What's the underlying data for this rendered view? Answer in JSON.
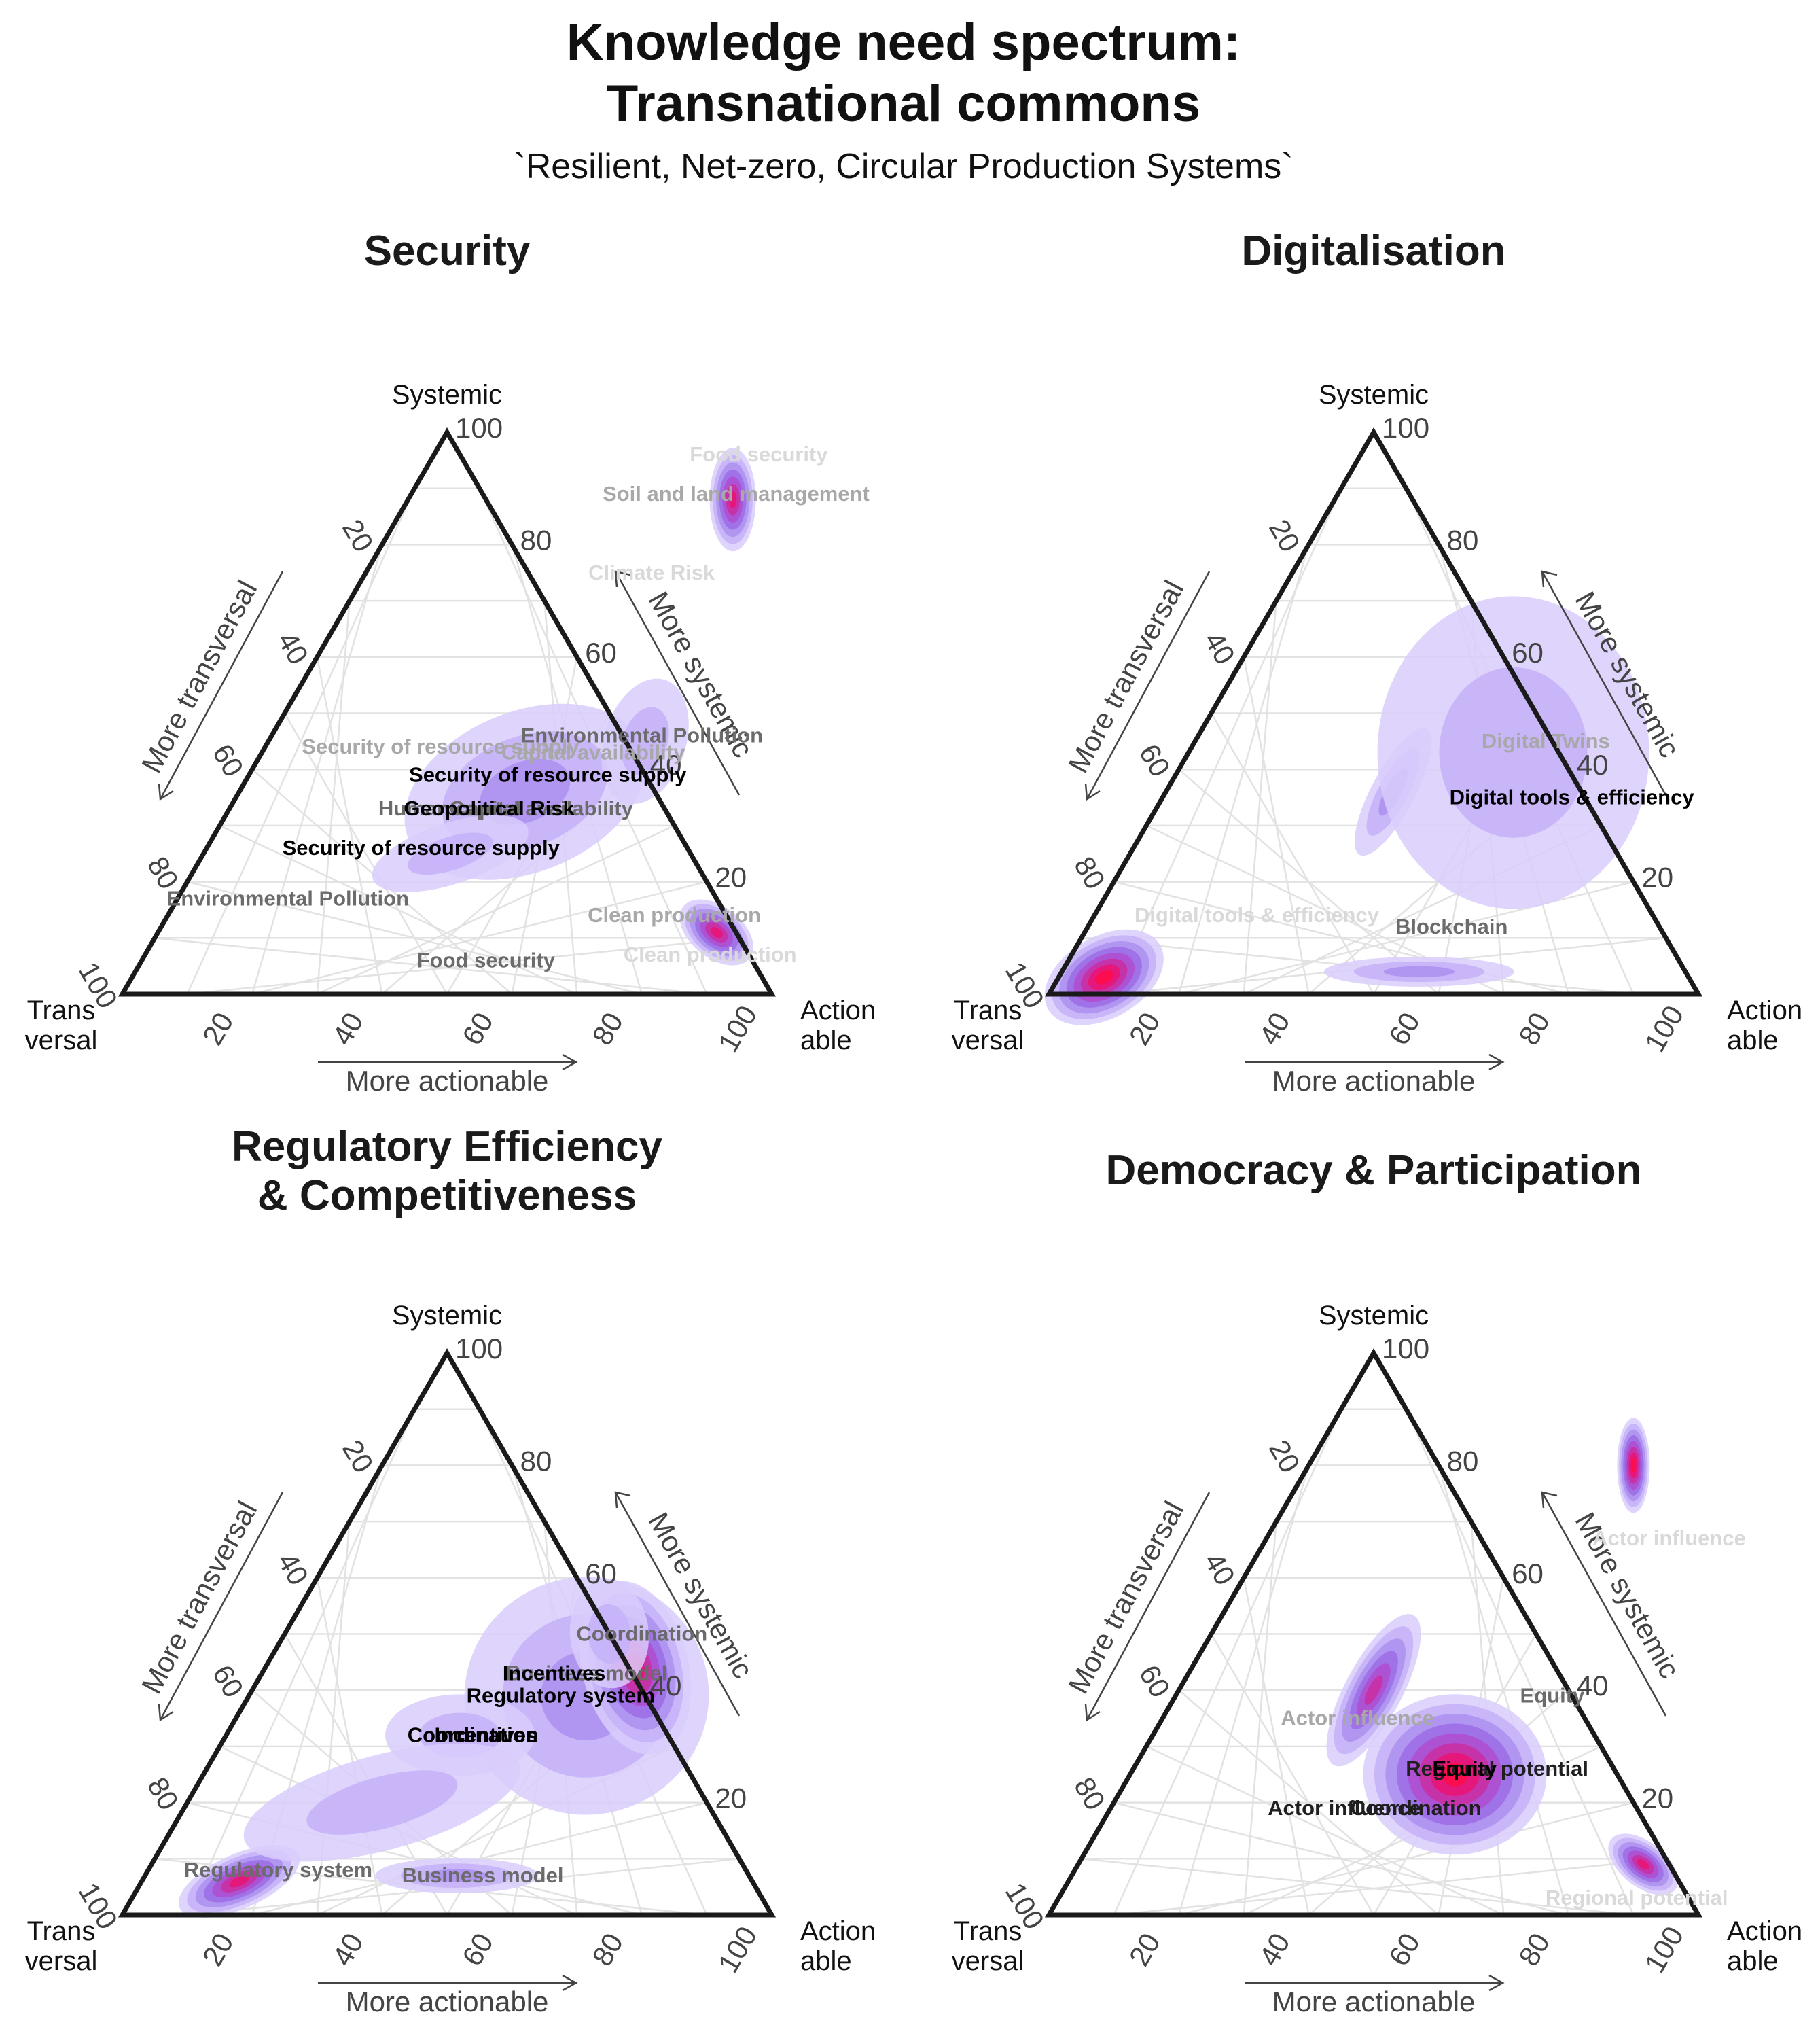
{
  "title": "Knowledge need spectrum:",
  "title_line2": "Transnational commons",
  "subtitle": "`Resilient, Net-zero, Circular Production Systems`",
  "axes": {
    "top_vertex": "Systemic",
    "left_vertex_line1": "Trans",
    "left_vertex_line2": "versal",
    "right_vertex_line1": "Action",
    "right_vertex_line2": "able",
    "arrow_left": "More transversal",
    "arrow_right": "More systemic",
    "arrow_bottom": "More actionable",
    "ticks": [
      "20",
      "40",
      "60",
      "80",
      "100"
    ]
  },
  "colors": {
    "density_low": "#d4c4fb",
    "density_high": "#ff0040",
    "frame": "#1a1a1a",
    "grid": "#e2e2e2"
  },
  "chart_data": [
    {
      "type": "ternary-density",
      "title_lines": [
        "Security"
      ],
      "axes": {
        "top": "Systemic",
        "left": "Transversal",
        "right": "Actionable",
        "range": [
          0,
          100
        ]
      },
      "labels": [
        {
          "text": "Food security",
          "systemic": 96,
          "actionable": 50,
          "shade": "#d9d9d9"
        },
        {
          "text": "Soil and land management",
          "systemic": 89,
          "actionable": 50,
          "shade": "#a8a8a8"
        },
        {
          "text": "Climate Risk",
          "systemic": 75,
          "actionable": 44,
          "shade": "#d9d9d9"
        },
        {
          "text": "Environmental Pollution",
          "systemic": 46,
          "actionable": 57,
          "shade": "#6b6b6b"
        },
        {
          "text": "Security of resource supply",
          "systemic": 44,
          "actionable": 27,
          "shade": "#a8a8a8"
        },
        {
          "text": "Capital availability",
          "systemic": 43,
          "actionable": 51,
          "shade": "#a8a8a8"
        },
        {
          "text": "Security of resource supply",
          "systemic": 39,
          "actionable": 46,
          "shade": "#000000"
        },
        {
          "text": "Human capital",
          "systemic": 33,
          "actionable": 34,
          "shade": "#6b6b6b"
        },
        {
          "text": "Capital availability",
          "systemic": 33,
          "actionable": 48,
          "shade": "#6b6b6b"
        },
        {
          "text": "Geopolitical Risk",
          "systemic": 33,
          "actionable": 40,
          "shade": "#000000"
        },
        {
          "text": "Security of resource supply",
          "systemic": 26,
          "actionable": 33,
          "shade": "#000000"
        },
        {
          "text": "Environmental Pollution",
          "systemic": 17,
          "actionable": 17,
          "shade": "#6b6b6b"
        },
        {
          "text": "Clean production",
          "systemic": 14,
          "actionable": 78,
          "shade": "#a8a8a8"
        },
        {
          "text": "Clean production",
          "systemic": 7,
          "actionable": 87,
          "shade": "#d9d9d9"
        },
        {
          "text": "Food security",
          "systemic": 6,
          "actionable": 53,
          "shade": "#6b6b6b"
        }
      ]
    },
    {
      "type": "ternary-density",
      "title_lines": [
        "Digitalisation"
      ],
      "axes": {
        "top": "Systemic",
        "left": "Transversal",
        "right": "Actionable",
        "range": [
          0,
          100
        ]
      },
      "labels": [
        {
          "text": "Digital Twins",
          "systemic": 45,
          "actionable": 54,
          "shade": "#a8a8a8"
        },
        {
          "text": "Digital tools & efficiency",
          "systemic": 35,
          "actionable": 63,
          "shade": "#000000"
        },
        {
          "text": "Digital tools & efficiency",
          "systemic": 14,
          "actionable": 25,
          "shade": "#d9d9d9"
        },
        {
          "text": "Blockchain",
          "systemic": 12,
          "actionable": 56,
          "shade": "#6b6b6b"
        }
      ]
    },
    {
      "type": "ternary-density",
      "title_lines": [
        "Regulatory Efficiency",
        "& Competitiveness"
      ],
      "axes": {
        "top": "Systemic",
        "left": "Transversal",
        "right": "Actionable",
        "range": [
          0,
          100
        ]
      },
      "labels": [
        {
          "text": "Coordination",
          "systemic": 50,
          "actionable": 55,
          "shade": "#6b6b6b"
        },
        {
          "text": "Business model",
          "systemic": 43,
          "actionable": 50,
          "shade": "#6b6b6b"
        },
        {
          "text": "Incentives",
          "systemic": 43,
          "actionable": 45,
          "shade": "#000000"
        },
        {
          "text": "Regulatory system",
          "systemic": 39,
          "actionable": 48,
          "shade": "#000000"
        },
        {
          "text": "Coordination",
          "systemic": 32,
          "actionable": 38,
          "shade": "#000000"
        },
        {
          "text": "Incentives",
          "systemic": 32,
          "actionable": 40,
          "shade": "#000000"
        },
        {
          "text": "Regulatory system",
          "systemic": 8,
          "actionable": 20,
          "shade": "#6b6b6b"
        },
        {
          "text": "Business model",
          "systemic": 7,
          "actionable": 52,
          "shade": "#6b6b6b"
        }
      ]
    },
    {
      "type": "ternary-density",
      "title_lines": [
        "Democracy & Participation"
      ],
      "axes": {
        "top": "Systemic",
        "left": "Transversal",
        "right": "Actionable",
        "range": [
          0,
          100
        ]
      },
      "labels": [
        {
          "text": "Actor influence",
          "systemic": 67,
          "actionable": 62,
          "shade": "#d9d9d9"
        },
        {
          "text": "Equity",
          "systemic": 39,
          "actionable": 58,
          "shade": "#6b6b6b"
        },
        {
          "text": "Actor influence",
          "systemic": 35,
          "actionable": 30,
          "shade": "#a8a8a8"
        },
        {
          "text": "Regional potential",
          "systemic": 26,
          "actionable": 56,
          "shade": "#1f1f1f"
        },
        {
          "text": "Equity",
          "systemic": 26,
          "actionable": 51,
          "shade": "#000000"
        },
        {
          "text": "Actor influence",
          "systemic": 19,
          "actionable": 36,
          "shade": "#1f1f1f"
        },
        {
          "text": "Coordination",
          "systemic": 19,
          "actionable": 47,
          "shade": "#1f1f1f"
        },
        {
          "text": "Regional potential",
          "systemic": 3,
          "actionable": 89,
          "shade": "#d9d9d9"
        }
      ]
    }
  ]
}
